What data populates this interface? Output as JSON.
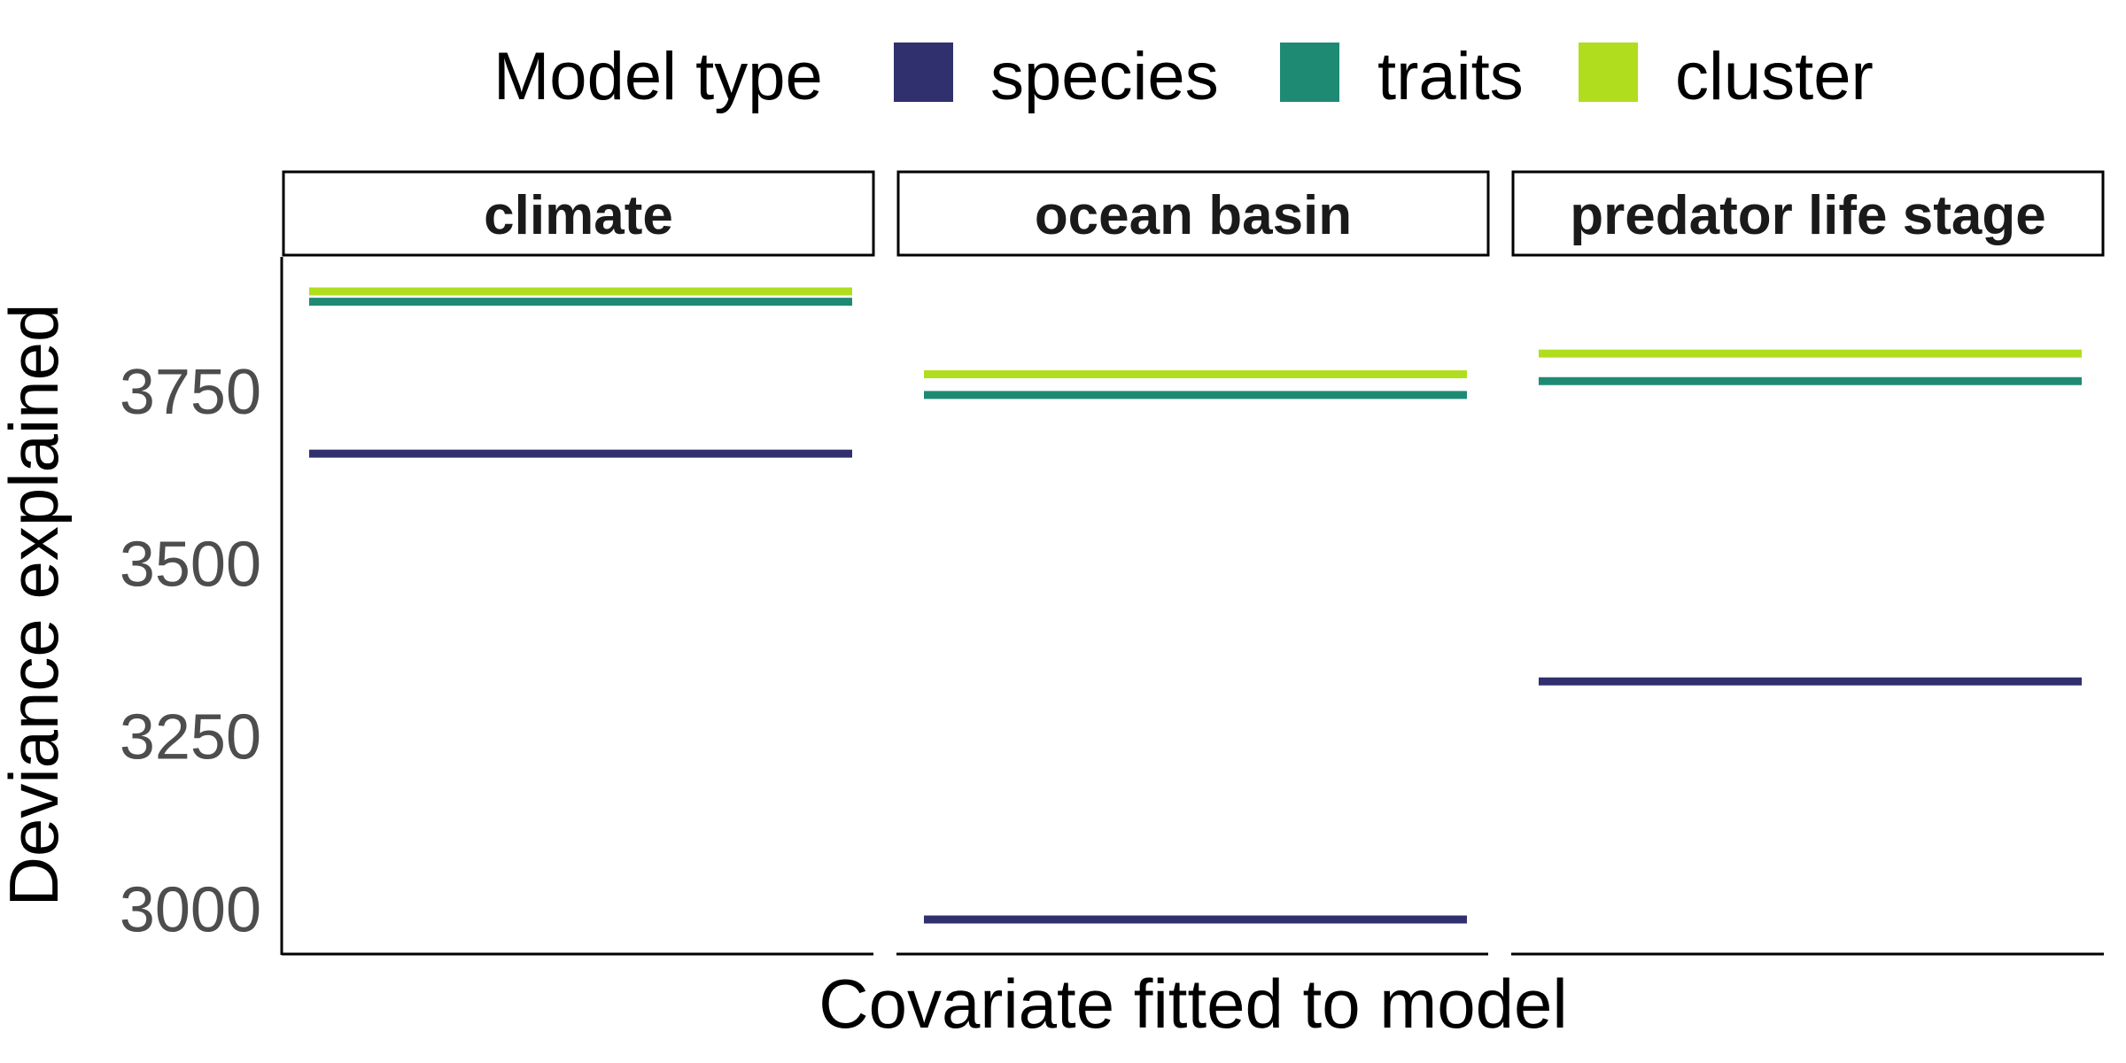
{
  "chart_data": {
    "type": "line",
    "subtype": "faceted horizontal reference lines",
    "xlabel": "Covariate fitted to model",
    "ylabel": "Deviance explained",
    "ylim": [
      2935,
      3945
    ],
    "yticks": [
      3000,
      3250,
      3500,
      3750
    ],
    "yticks_text": [
      "3000",
      "3250",
      "3500",
      "3750"
    ],
    "grid": false,
    "legend": {
      "title": "Model type",
      "position": "top",
      "entries": [
        "species",
        "traits",
        "cluster"
      ]
    },
    "colors": {
      "species": "#30306e",
      "traits": "#1f8a74",
      "cluster": "#b0de1f"
    },
    "facets": [
      "climate",
      "ocean basin",
      "predator life stage"
    ],
    "series": [
      {
        "name": "species",
        "values": [
          3660,
          2985,
          3330
        ]
      },
      {
        "name": "traits",
        "values": [
          3880,
          3745,
          3765
        ]
      },
      {
        "name": "cluster",
        "values": [
          3895,
          3775,
          3805
        ]
      }
    ]
  }
}
